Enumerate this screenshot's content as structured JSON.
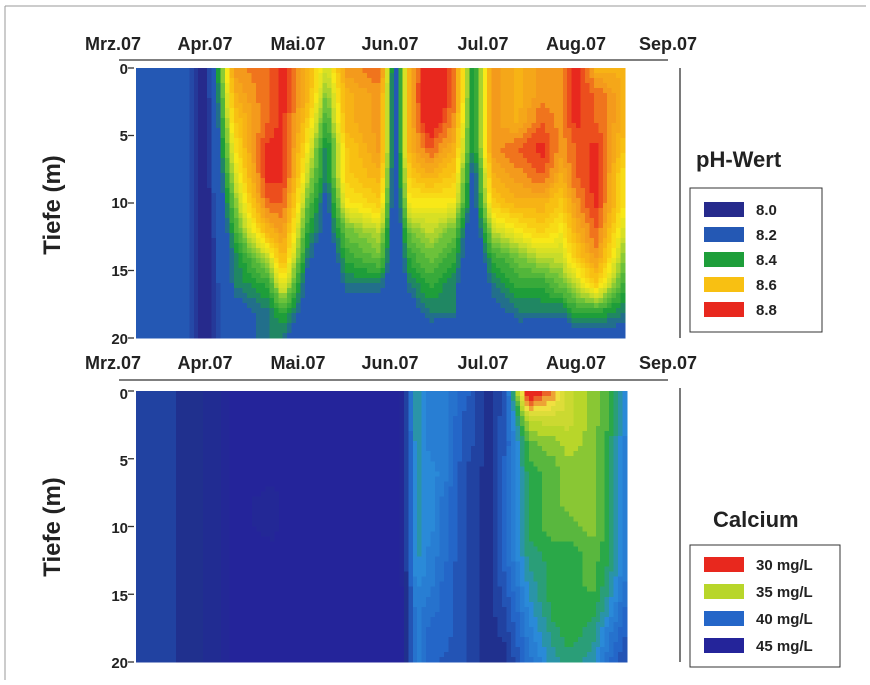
{
  "colors": {
    "ph": [
      "#262a8c",
      "#2458b4",
      "#1e9e3a",
      "#f8c012",
      "#e8281e"
    ],
    "calcium": [
      "#e8281e",
      "#b8d62a",
      "#2466c8",
      "#24249a"
    ],
    "ph_extra": {
      "green_light": "#6cc23a",
      "yellow_green": "#c8dc2a",
      "yellow": "#f8e818",
      "orange": "#f49a1c"
    },
    "calcium_extra": {
      "green": "#2aa848",
      "blue_light": "#2a8ad8",
      "navy": "#20308e",
      "yellow": "#f0e040"
    }
  },
  "chart_data": [
    {
      "type": "heatmap",
      "id": "ph",
      "months": [
        "Mrz.07",
        "Apr.07",
        "Mai.07",
        "Jun.07",
        "Jul.07",
        "Aug.07",
        "Sep.07"
      ],
      "y_ticks": [
        "0",
        "5",
        "10",
        "15",
        "20"
      ],
      "ylabel": "Tiefe (m)",
      "ylim": [
        0,
        20
      ],
      "legend_title": "pH-Wert",
      "legend_labels": [
        "8.0",
        "8.2",
        "8.4",
        "8.6",
        "8.8"
      ],
      "x_fraction": [
        0.0,
        0.1,
        0.14,
        0.2,
        0.27,
        0.3,
        0.35,
        0.39,
        0.43,
        0.5,
        0.53,
        0.56,
        0.6,
        0.65,
        0.69,
        0.73,
        0.78,
        0.83,
        0.87,
        0.9,
        0.94,
        1.0
      ],
      "depths": [
        0,
        2,
        4,
        6,
        8,
        10,
        12,
        14,
        16,
        18,
        20
      ],
      "grid": [
        [
          8.2,
          8.2,
          8.05,
          8.65,
          8.7,
          8.75,
          8.6,
          8.45,
          8.65,
          8.7,
          8.2,
          8.6,
          8.8,
          8.7,
          8.3,
          8.65,
          8.6,
          8.65,
          8.65,
          8.75,
          8.6,
          8.6
        ],
        [
          8.2,
          8.2,
          8.05,
          8.6,
          8.7,
          8.75,
          8.6,
          8.4,
          8.6,
          8.65,
          8.2,
          8.6,
          8.85,
          8.7,
          8.3,
          8.65,
          8.6,
          8.65,
          8.65,
          8.75,
          8.7,
          8.6
        ],
        [
          8.2,
          8.2,
          8.05,
          8.55,
          8.7,
          8.75,
          8.55,
          8.35,
          8.6,
          8.65,
          8.2,
          8.6,
          8.8,
          8.65,
          8.3,
          8.65,
          8.6,
          8.7,
          8.65,
          8.75,
          8.7,
          8.6
        ],
        [
          8.2,
          8.2,
          8.05,
          8.5,
          8.75,
          8.75,
          8.5,
          8.3,
          8.55,
          8.65,
          8.2,
          8.6,
          8.7,
          8.6,
          8.3,
          8.65,
          8.7,
          8.75,
          8.65,
          8.7,
          8.75,
          8.55
        ],
        [
          8.2,
          8.2,
          8.05,
          8.45,
          8.75,
          8.75,
          8.45,
          8.3,
          8.55,
          8.6,
          8.2,
          8.55,
          8.6,
          8.55,
          8.25,
          8.6,
          8.65,
          8.7,
          8.6,
          8.7,
          8.75,
          8.5
        ],
        [
          8.2,
          8.2,
          8.05,
          8.4,
          8.7,
          8.7,
          8.4,
          8.25,
          8.5,
          8.55,
          8.2,
          8.5,
          8.5,
          8.5,
          8.25,
          8.55,
          8.6,
          8.6,
          8.55,
          8.65,
          8.75,
          8.5
        ],
        [
          8.2,
          8.2,
          8.05,
          8.35,
          8.6,
          8.65,
          8.35,
          8.25,
          8.4,
          8.45,
          8.2,
          8.4,
          8.45,
          8.4,
          8.2,
          8.45,
          8.5,
          8.55,
          8.5,
          8.6,
          8.7,
          8.45
        ],
        [
          8.2,
          8.2,
          8.05,
          8.3,
          8.45,
          8.6,
          8.3,
          8.2,
          8.35,
          8.4,
          8.2,
          8.35,
          8.4,
          8.35,
          8.2,
          8.35,
          8.4,
          8.45,
          8.45,
          8.55,
          8.65,
          8.4
        ],
        [
          8.2,
          8.2,
          8.05,
          8.3,
          8.35,
          8.5,
          8.25,
          8.2,
          8.3,
          8.3,
          8.2,
          8.3,
          8.35,
          8.3,
          8.2,
          8.3,
          8.35,
          8.35,
          8.4,
          8.45,
          8.55,
          8.35
        ],
        [
          8.2,
          8.2,
          8.05,
          8.25,
          8.3,
          8.35,
          8.25,
          8.2,
          8.25,
          8.25,
          8.2,
          8.25,
          8.3,
          8.3,
          8.2,
          8.25,
          8.3,
          8.3,
          8.3,
          8.35,
          8.35,
          8.3
        ],
        [
          8.2,
          8.2,
          8.05,
          8.25,
          8.3,
          8.3,
          8.2,
          8.2,
          8.2,
          8.2,
          8.2,
          8.2,
          8.25,
          8.2,
          8.2,
          8.2,
          8.25,
          8.2,
          8.2,
          8.25,
          8.25,
          8.25
        ]
      ]
    },
    {
      "type": "heatmap",
      "id": "calcium",
      "months": [
        "Mrz.07",
        "Apr.07",
        "Mai.07",
        "Jun.07",
        "Jul.07",
        "Aug.07",
        "Sep.07"
      ],
      "y_ticks": [
        "0",
        "5",
        "10",
        "15",
        "20"
      ],
      "ylabel": "Tiefe (m)",
      "ylim": [
        0,
        20
      ],
      "legend_title": "Calcium",
      "legend_labels": [
        "30 mg/L",
        "35 mg/L",
        "40 mg/L",
        "45 mg/L"
      ],
      "x_fraction": [
        0.0,
        0.06,
        0.12,
        0.16,
        0.2,
        0.28,
        0.35,
        0.45,
        0.53,
        0.57,
        0.6,
        0.63,
        0.67,
        0.72,
        0.75,
        0.8,
        0.85,
        0.88,
        0.93,
        0.96,
        1.0
      ],
      "depths": [
        0,
        2,
        4,
        6,
        8,
        10,
        12,
        14,
        16,
        18,
        20
      ],
      "grid": [
        [
          42,
          42.5,
          43,
          43.5,
          44.5,
          44.5,
          45.5,
          45.5,
          46,
          38.5,
          40,
          40,
          41,
          43,
          42,
          32,
          34,
          36,
          37,
          37.5,
          40
        ],
        [
          42,
          42.5,
          43,
          43.5,
          44.5,
          45,
          45.5,
          45.5,
          46,
          38.5,
          40,
          40,
          41.5,
          43,
          41.5,
          36,
          36,
          36,
          37,
          37.5,
          40
        ],
        [
          42,
          42.5,
          43,
          43.5,
          44.5,
          45,
          45.5,
          45.5,
          46,
          39,
          40,
          40,
          41.5,
          43,
          41.5,
          37.5,
          37,
          36.5,
          37,
          38,
          40
        ],
        [
          42,
          42.5,
          43,
          43.5,
          44.5,
          44.5,
          45.5,
          45.5,
          46,
          39,
          39.5,
          40,
          42,
          43,
          41,
          38,
          37.5,
          37,
          37,
          38,
          40
        ],
        [
          42,
          42.5,
          43,
          43.5,
          44.5,
          44,
          45.5,
          45.5,
          46,
          39,
          39.5,
          40.5,
          42,
          43,
          41,
          38,
          37.5,
          37,
          37,
          38,
          40
        ],
        [
          42,
          42.5,
          43,
          43.5,
          44.5,
          44,
          45.5,
          45.5,
          46,
          39,
          39.5,
          40.5,
          42,
          43,
          41,
          38,
          37.5,
          37.5,
          37,
          38,
          40
        ],
        [
          42,
          42.5,
          43,
          43.5,
          44.5,
          44.5,
          45.5,
          45.5,
          46,
          39,
          40,
          40.5,
          42,
          43,
          41,
          38.5,
          38,
          38,
          37.5,
          38,
          40
        ],
        [
          42,
          42.5,
          43,
          43.5,
          44.5,
          45,
          45.5,
          45.5,
          46,
          39.5,
          40,
          41,
          42,
          43,
          41.5,
          39,
          38,
          38,
          37.5,
          38.5,
          40.5
        ],
        [
          42,
          42.5,
          43,
          43.5,
          44.5,
          45,
          45.5,
          45.5,
          46,
          40,
          40.5,
          41,
          42,
          43,
          42,
          39.5,
          38,
          38,
          38,
          39,
          41
        ],
        [
          42,
          42.5,
          43,
          43.5,
          44.5,
          45,
          45.5,
          45.5,
          46,
          40,
          41,
          41,
          42,
          43,
          42.5,
          40,
          38.5,
          38,
          38.5,
          40,
          41.5
        ],
        [
          42,
          42.5,
          43,
          43.5,
          44.5,
          45,
          45.5,
          45.5,
          46,
          40,
          41,
          41.5,
          42,
          43,
          43,
          40.5,
          39,
          38.5,
          39,
          40.5,
          42
        ]
      ]
    }
  ]
}
